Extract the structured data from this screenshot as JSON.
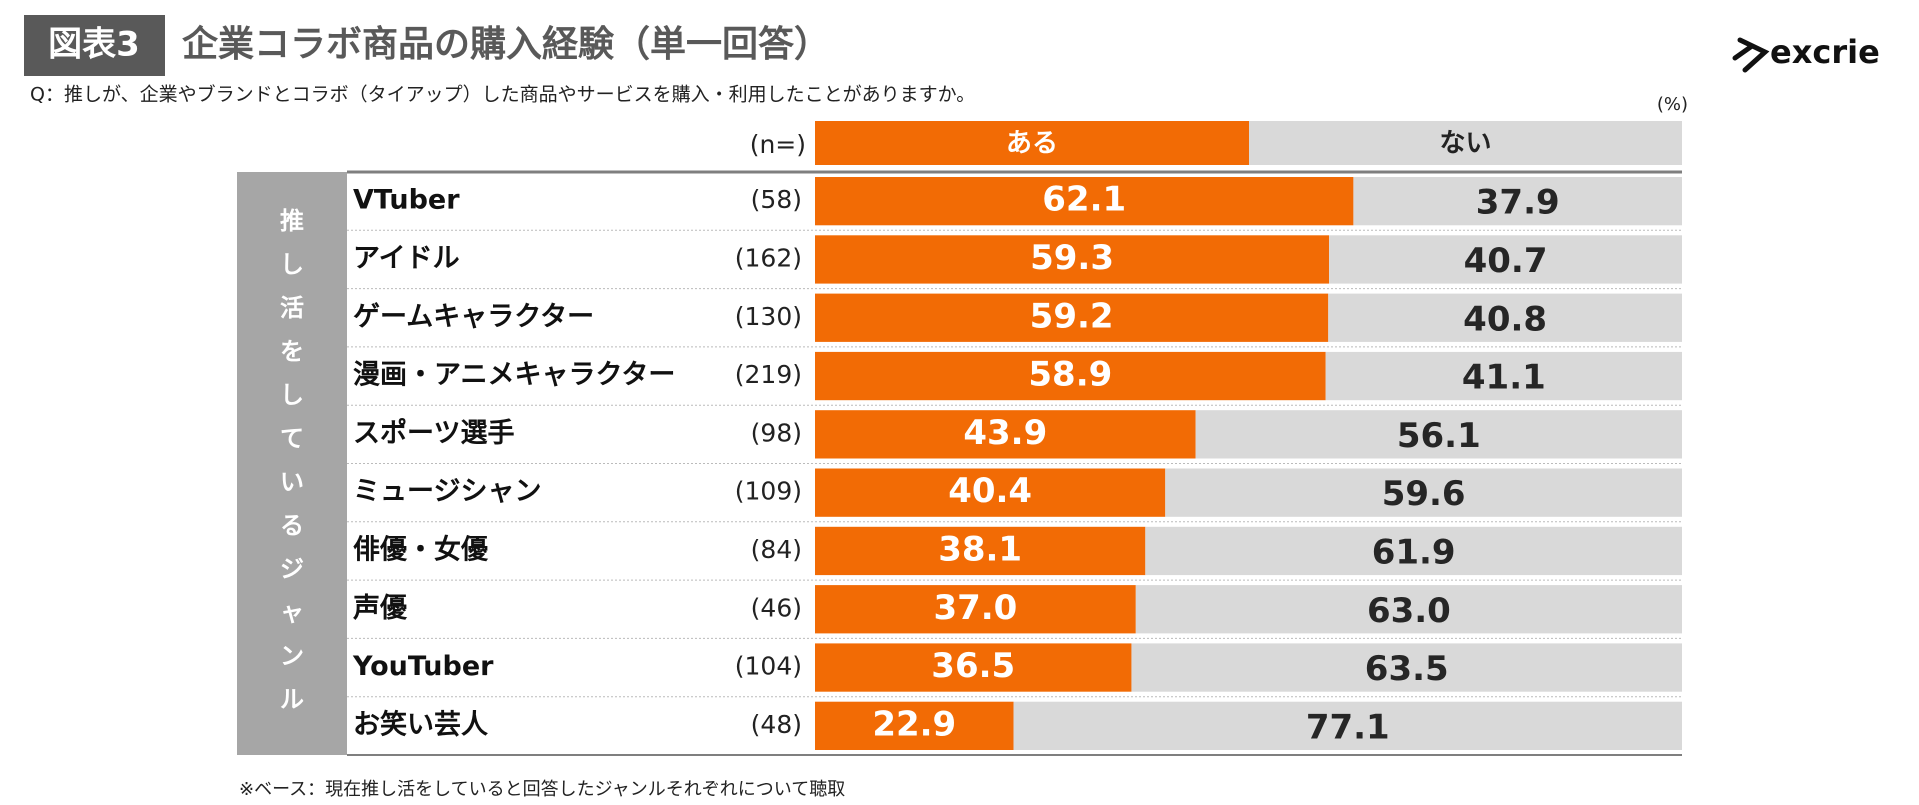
{
  "figure_label": "図表3",
  "logo": "excrie",
  "chart_data": {
    "type": "stacked-bar",
    "orientation": "horizontal",
    "title": "企業コラボ商品の購入経験（単一回答）",
    "subtitle": "Q：推しが、企業やブランドとコラボ（タイアップ）した商品やサービスを購入・利用したことがありますか。",
    "unit": "(%)",
    "n_header": "(n=)",
    "group_label": "推し活をしているジャンル",
    "footnote": "※ベース：現在推し活をしていると回答したジャンルそれぞれについて聴取",
    "categories": [
      "VTuber",
      "アイドル",
      "ゲームキャラクター",
      "漫画・アニメキャラクター",
      "スポーツ選手",
      "ミュージシャン",
      "俳優・女優",
      "声優",
      "YouTuber",
      "お笑い芸人"
    ],
    "sample_sizes": {
      "values": [
        58,
        162,
        130,
        219,
        98,
        109,
        84,
        46,
        104,
        48
      ],
      "value_labels": [
        "(58)",
        "(162)",
        "(130)",
        "(219)",
        "(98)",
        "(109)",
        "(84)",
        "(46)",
        "(104)",
        "(48)"
      ]
    },
    "xlim": [
      0,
      100
    ],
    "series": [
      {
        "name": "ある",
        "color": "#f26b05",
        "label_color": "#ffffff",
        "values": [
          62.1,
          59.3,
          59.2,
          58.9,
          43.9,
          40.4,
          38.1,
          37.0,
          36.5,
          22.9
        ],
        "value_labels": [
          "62.1",
          "59.3",
          "59.2",
          "58.9",
          "43.9",
          "40.4",
          "38.1",
          "37.0",
          "36.5",
          "22.9"
        ]
      },
      {
        "name": "ない",
        "color": "#d9d9d9",
        "label_color": "#262626",
        "values": [
          37.9,
          40.7,
          40.8,
          41.1,
          56.1,
          59.6,
          61.9,
          63.0,
          63.5,
          77.1
        ],
        "value_labels": [
          "37.9",
          "40.7",
          "40.8",
          "41.1",
          "56.1",
          "59.6",
          "61.9",
          "63.0",
          "63.5",
          "77.1"
        ]
      }
    ]
  }
}
